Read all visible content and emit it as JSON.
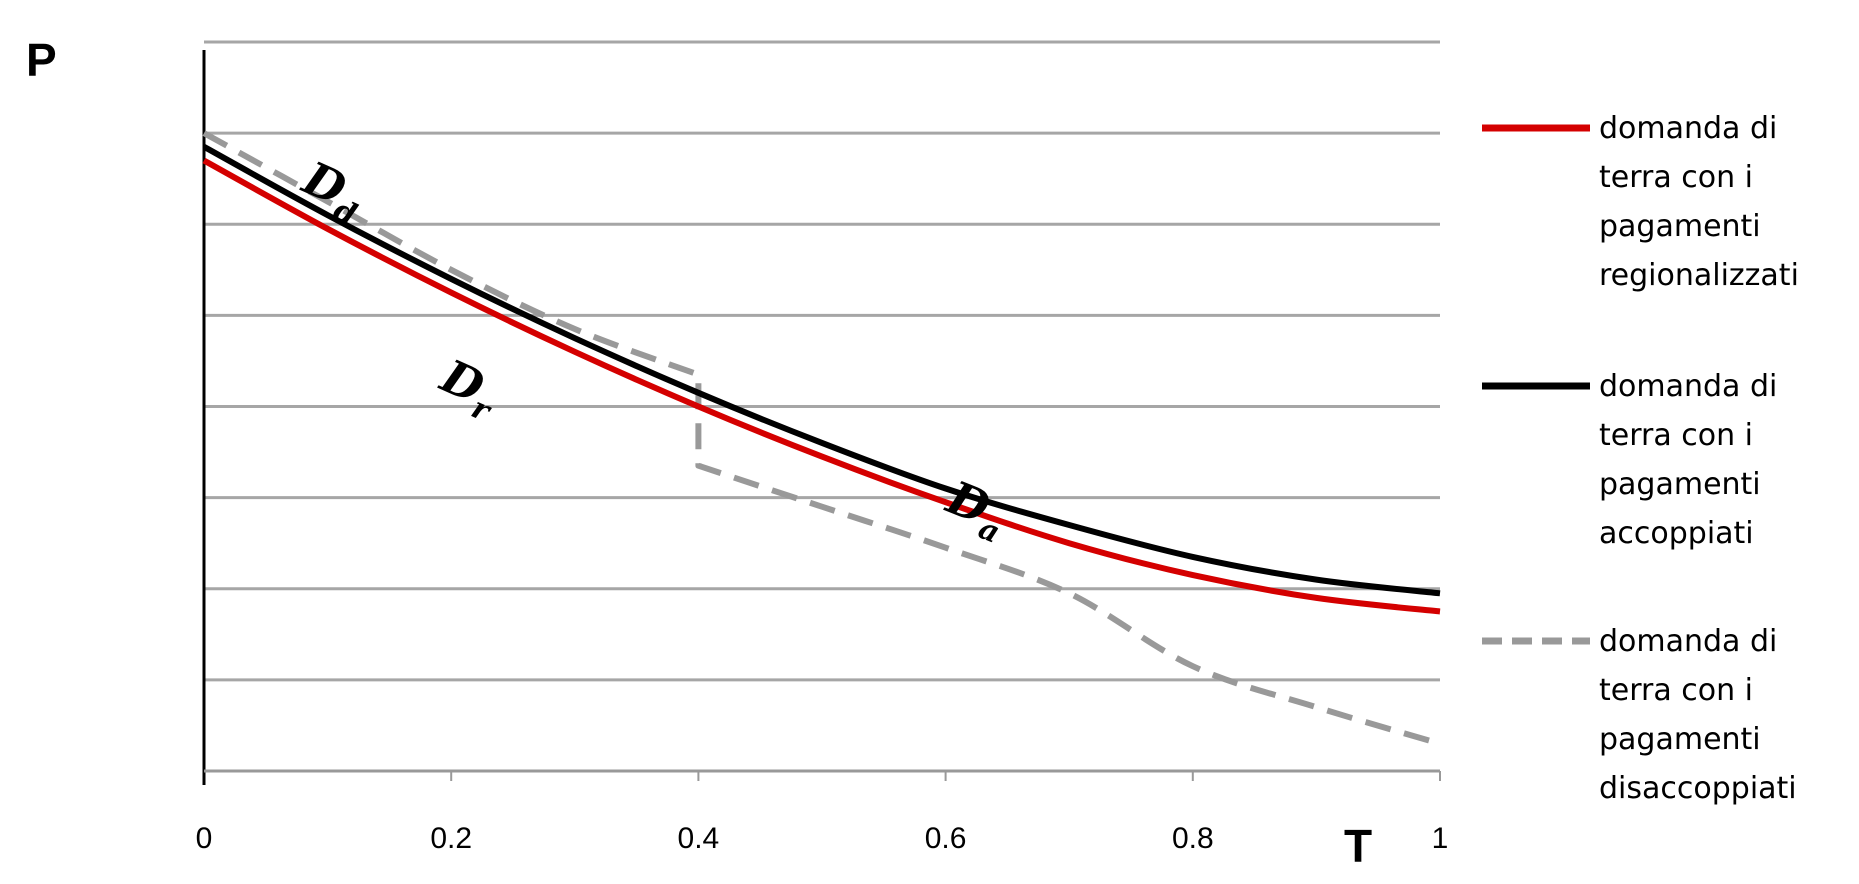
{
  "chart_data": {
    "type": "line",
    "xlabel": "T",
    "ylabel": "P",
    "xlim": [
      0,
      1
    ],
    "ylim": [
      0,
      8
    ],
    "x_ticks": [
      "0",
      "0.2",
      "0.4",
      "0.6",
      "0.8",
      "1"
    ],
    "gridlines_y": [
      1,
      2,
      3,
      4,
      5,
      6,
      7,
      8
    ],
    "grid": true,
    "legend_placement": "right",
    "series": [
      {
        "name": "domanda di terra con i pagamenti regionalizzati",
        "legend_lines": [
          "domanda di",
          "terra con i",
          "pagamenti",
          "regionalizzati"
        ],
        "label_main": "D",
        "label_sub": "r",
        "color": "#d40000",
        "style": "solid",
        "x": [
          0,
          0.1,
          0.2,
          0.3,
          0.4,
          0.5,
          0.6,
          0.7,
          0.8,
          0.9,
          1.0
        ],
        "y": [
          6.7,
          5.95,
          5.25,
          4.6,
          4.0,
          3.45,
          2.95,
          2.5,
          2.15,
          1.9,
          1.75
        ]
      },
      {
        "name": "domanda di terra con i pagamenti accoppiati",
        "legend_lines": [
          "domanda di",
          "terra con i",
          "pagamenti",
          "accoppiati"
        ],
        "label_main": "D",
        "label_sub": "a",
        "color": "#000000",
        "style": "solid",
        "x": [
          0,
          0.1,
          0.2,
          0.3,
          0.4,
          0.5,
          0.6,
          0.7,
          0.8,
          0.9,
          1.0
        ],
        "y": [
          6.85,
          6.1,
          5.4,
          4.75,
          4.15,
          3.6,
          3.1,
          2.7,
          2.35,
          2.1,
          1.95
        ]
      },
      {
        "name": "domanda di terra con i pagamenti disaccoppiati",
        "legend_lines": [
          "domanda di",
          "terra con i",
          "pagamenti",
          "disaccoppiati"
        ],
        "label_main": "D",
        "label_sub": "d",
        "color": "#999999",
        "style": "dashed",
        "x": [
          0,
          0.1,
          0.2,
          0.3,
          0.4,
          0.4,
          0.5,
          0.6,
          0.7,
          0.8,
          0.9,
          1.0
        ],
        "y": [
          7.0,
          6.25,
          5.5,
          4.85,
          4.35,
          3.35,
          2.9,
          2.45,
          1.95,
          1.15,
          0.7,
          0.3
        ]
      }
    ]
  }
}
